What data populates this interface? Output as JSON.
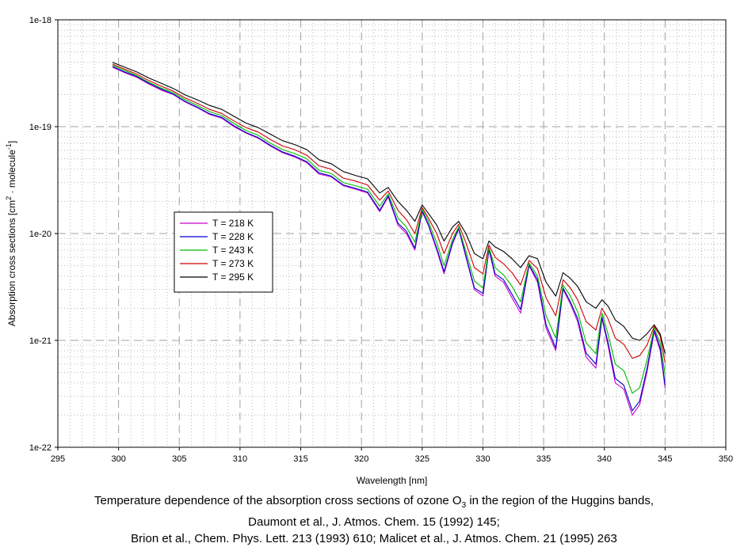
{
  "chart_data": {
    "type": "line",
    "title": "",
    "xlabel": "Wavelength [nm]",
    "ylabel": {
      "prefix": "Absorption cross sections [cm",
      "sup1": "2",
      "middle": " · molecule",
      "sup2": "-1",
      "suffix": "]"
    },
    "xlim": [
      295,
      350
    ],
    "ylim": [
      1e-22,
      1e-18
    ],
    "yscale": "log",
    "x_ticks": [
      295,
      300,
      305,
      310,
      315,
      320,
      325,
      330,
      335,
      340,
      345,
      350
    ],
    "y_ticks": [
      {
        "value": 1e-18,
        "label": "1e-18"
      },
      {
        "value": 1e-19,
        "label": "1e-19"
      },
      {
        "value": 1e-20,
        "label": "1e-20"
      },
      {
        "value": 1e-21,
        "label": "1e-21"
      },
      {
        "value": 1e-22,
        "label": "1e-22"
      }
    ],
    "grid": true,
    "legend_position": "middle-left",
    "x": [
      299.5,
      300.5,
      301.5,
      302.5,
      303.5,
      304.5,
      305.5,
      306.5,
      307.5,
      308.5,
      309.5,
      310.5,
      311.5,
      312.5,
      313.5,
      314.5,
      315.5,
      316.5,
      317.5,
      318.5,
      319.5,
      320.5,
      321.5,
      322.2,
      323.0,
      323.7,
      324.4,
      325.0,
      325.5,
      326.2,
      326.8,
      327.5,
      328.0,
      328.6,
      329.3,
      330.0,
      330.5,
      331.0,
      331.7,
      332.4,
      333.1,
      333.8,
      334.5,
      335.2,
      336.0,
      336.6,
      337.2,
      337.8,
      338.5,
      339.3,
      339.8,
      340.3,
      340.9,
      341.6,
      342.3,
      342.9,
      343.5,
      344.1,
      344.6,
      345.0
    ],
    "series": [
      {
        "name": "T = 218 K",
        "color": "#cc00cc",
        "values": [
          3.6e-19,
          3.2e-19,
          2.9e-19,
          2.5e-19,
          2.2e-19,
          2e-19,
          1.7e-19,
          1.5e-19,
          1.3e-19,
          1.2e-19,
          1e-19,
          8.7e-20,
          7.8e-20,
          6.6e-20,
          5.7e-20,
          5.2e-20,
          4.6e-20,
          3.6e-20,
          3.4e-20,
          2.8e-20,
          2.6e-20,
          2.4e-20,
          1.6e-20,
          2.2e-20,
          1.2e-20,
          1e-20,
          7e-21,
          1.6e-20,
          1.2e-20,
          7e-21,
          4.2e-21,
          8e-21,
          1.1e-20,
          6e-21,
          3e-21,
          2.6e-21,
          7e-21,
          4e-21,
          3.5e-21,
          2.5e-21,
          1.8e-21,
          5e-21,
          3.5e-21,
          1.3e-21,
          8e-22,
          3e-21,
          2.2e-21,
          1.5e-21,
          7e-22,
          5.5e-22,
          1.6e-21,
          9e-22,
          4e-22,
          3.5e-22,
          2e-22,
          2.5e-22,
          5e-22,
          1.2e-21,
          8e-22,
          3.6e-22
        ]
      },
      {
        "name": "T = 228 K",
        "color": "#0000cc",
        "values": [
          3.65e-19,
          3.25e-19,
          2.95e-19,
          2.55e-19,
          2.25e-19,
          2.02e-19,
          1.72e-19,
          1.52e-19,
          1.32e-19,
          1.22e-19,
          1.02e-19,
          8.8e-20,
          7.9e-20,
          6.7e-20,
          5.8e-20,
          5.3e-20,
          4.7e-20,
          3.7e-20,
          3.45e-20,
          2.85e-20,
          2.65e-20,
          2.45e-20,
          1.65e-20,
          2.25e-20,
          1.25e-20,
          1.05e-20,
          7.3e-21,
          1.62e-20,
          1.22e-20,
          7.3e-21,
          4.4e-21,
          8.2e-21,
          1.12e-20,
          6.2e-21,
          3.1e-21,
          2.75e-21,
          7.2e-21,
          4.2e-21,
          3.7e-21,
          2.7e-21,
          1.95e-21,
          5.1e-21,
          3.7e-21,
          1.4e-21,
          8.5e-22,
          3.1e-21,
          2.3e-21,
          1.6e-21,
          7.6e-22,
          6e-22,
          1.65e-21,
          9.6e-22,
          4.4e-22,
          3.8e-22,
          2.2e-22,
          2.7e-22,
          5.4e-22,
          1.25e-21,
          8.5e-22,
          3.8e-22
        ]
      },
      {
        "name": "T = 243 K",
        "color": "#00bb00",
        "values": [
          3.75e-19,
          3.35e-19,
          3e-19,
          2.6e-19,
          2.3e-19,
          2.08e-19,
          1.78e-19,
          1.58e-19,
          1.38e-19,
          1.27e-19,
          1.07e-19,
          9.2e-20,
          8.3e-20,
          7e-20,
          6.1e-20,
          5.6e-20,
          5e-20,
          3.9e-20,
          3.65e-20,
          3e-20,
          2.8e-20,
          2.6e-20,
          1.8e-20,
          2.35e-20,
          1.4e-20,
          1.15e-20,
          8.3e-21,
          1.68e-20,
          1.3e-20,
          8.2e-21,
          5e-21,
          8.8e-21,
          1.15e-20,
          6.8e-21,
          3.6e-21,
          3.1e-21,
          7.4e-21,
          4.8e-21,
          4.1e-21,
          3.2e-21,
          2.3e-21,
          5.3e-21,
          4e-21,
          1.7e-21,
          1.05e-21,
          3.3e-21,
          2.6e-21,
          1.85e-21,
          9.5e-22,
          7.5e-22,
          1.8e-21,
          1.15e-21,
          6e-22,
          5.2e-22,
          3.2e-22,
          3.6e-22,
          6.5e-22,
          1.3e-21,
          9.5e-22,
          4.8e-22
        ]
      },
      {
        "name": "T = 273 K",
        "color": "#cc0000",
        "values": [
          3.85e-19,
          3.45e-19,
          3.1e-19,
          2.7e-19,
          2.4e-19,
          2.15e-19,
          1.85e-19,
          1.65e-19,
          1.45e-19,
          1.33e-19,
          1.13e-19,
          9.8e-20,
          8.9e-20,
          7.6e-20,
          6.6e-20,
          6.1e-20,
          5.4e-20,
          4.3e-20,
          4e-20,
          3.3e-20,
          3.1e-20,
          2.85e-20,
          2.05e-20,
          2.5e-20,
          1.65e-20,
          1.35e-20,
          1e-20,
          1.75e-20,
          1.4e-20,
          1e-20,
          6.5e-21,
          1e-20,
          1.22e-20,
          8.2e-21,
          4.8e-21,
          4.2e-21,
          7.8e-21,
          6e-21,
          5.2e-21,
          4.3e-21,
          3.3e-21,
          5.6e-21,
          4.7e-21,
          2.5e-21,
          1.7e-21,
          3.7e-21,
          3.1e-21,
          2.4e-21,
          1.5e-21,
          1.25e-21,
          2e-21,
          1.6e-21,
          1.05e-21,
          9.2e-22,
          6.8e-22,
          7.2e-22,
          9e-22,
          1.35e-21,
          1.1e-21,
          6.2e-22
        ]
      },
      {
        "name": "T = 295 K",
        "color": "#000000",
        "values": [
          4e-19,
          3.6e-19,
          3.25e-19,
          2.85e-19,
          2.55e-19,
          2.28e-19,
          1.98e-19,
          1.78e-19,
          1.58e-19,
          1.45e-19,
          1.25e-19,
          1.08e-19,
          9.8e-20,
          8.5e-20,
          7.4e-20,
          6.8e-20,
          6.1e-20,
          4.9e-20,
          4.5e-20,
          3.8e-20,
          3.5e-20,
          3.25e-20,
          2.4e-20,
          2.7e-20,
          2e-20,
          1.65e-20,
          1.3e-20,
          1.85e-20,
          1.55e-20,
          1.2e-20,
          8.5e-21,
          1.15e-20,
          1.3e-20,
          1e-20,
          6.5e-21,
          5.8e-21,
          8.5e-21,
          7.5e-21,
          6.8e-21,
          5.8e-21,
          4.8e-21,
          6.2e-21,
          5.8e-21,
          3.5e-21,
          2.6e-21,
          4.3e-21,
          3.8e-21,
          3.2e-21,
          2.3e-21,
          2e-21,
          2.4e-21,
          2.1e-21,
          1.55e-21,
          1.35e-21,
          1.05e-21,
          1e-21,
          1.15e-21,
          1.4e-21,
          1.15e-21,
          7.5e-22
        ]
      }
    ]
  },
  "caption": {
    "line1_prefix": "Temperature dependence of the absorption cross sections of ozone O",
    "line1_sub": "3",
    "line1_suffix": " in the region of the Huggins bands,",
    "line2": "Daumont et al., J. Atmos. Chem. 15 (1992) 145;",
    "line3": "Brion et al., Chem. Phys. Lett. 213 (1993) 610; Malicet et al., J. Atmos. Chem. 21 (1995) 263"
  }
}
